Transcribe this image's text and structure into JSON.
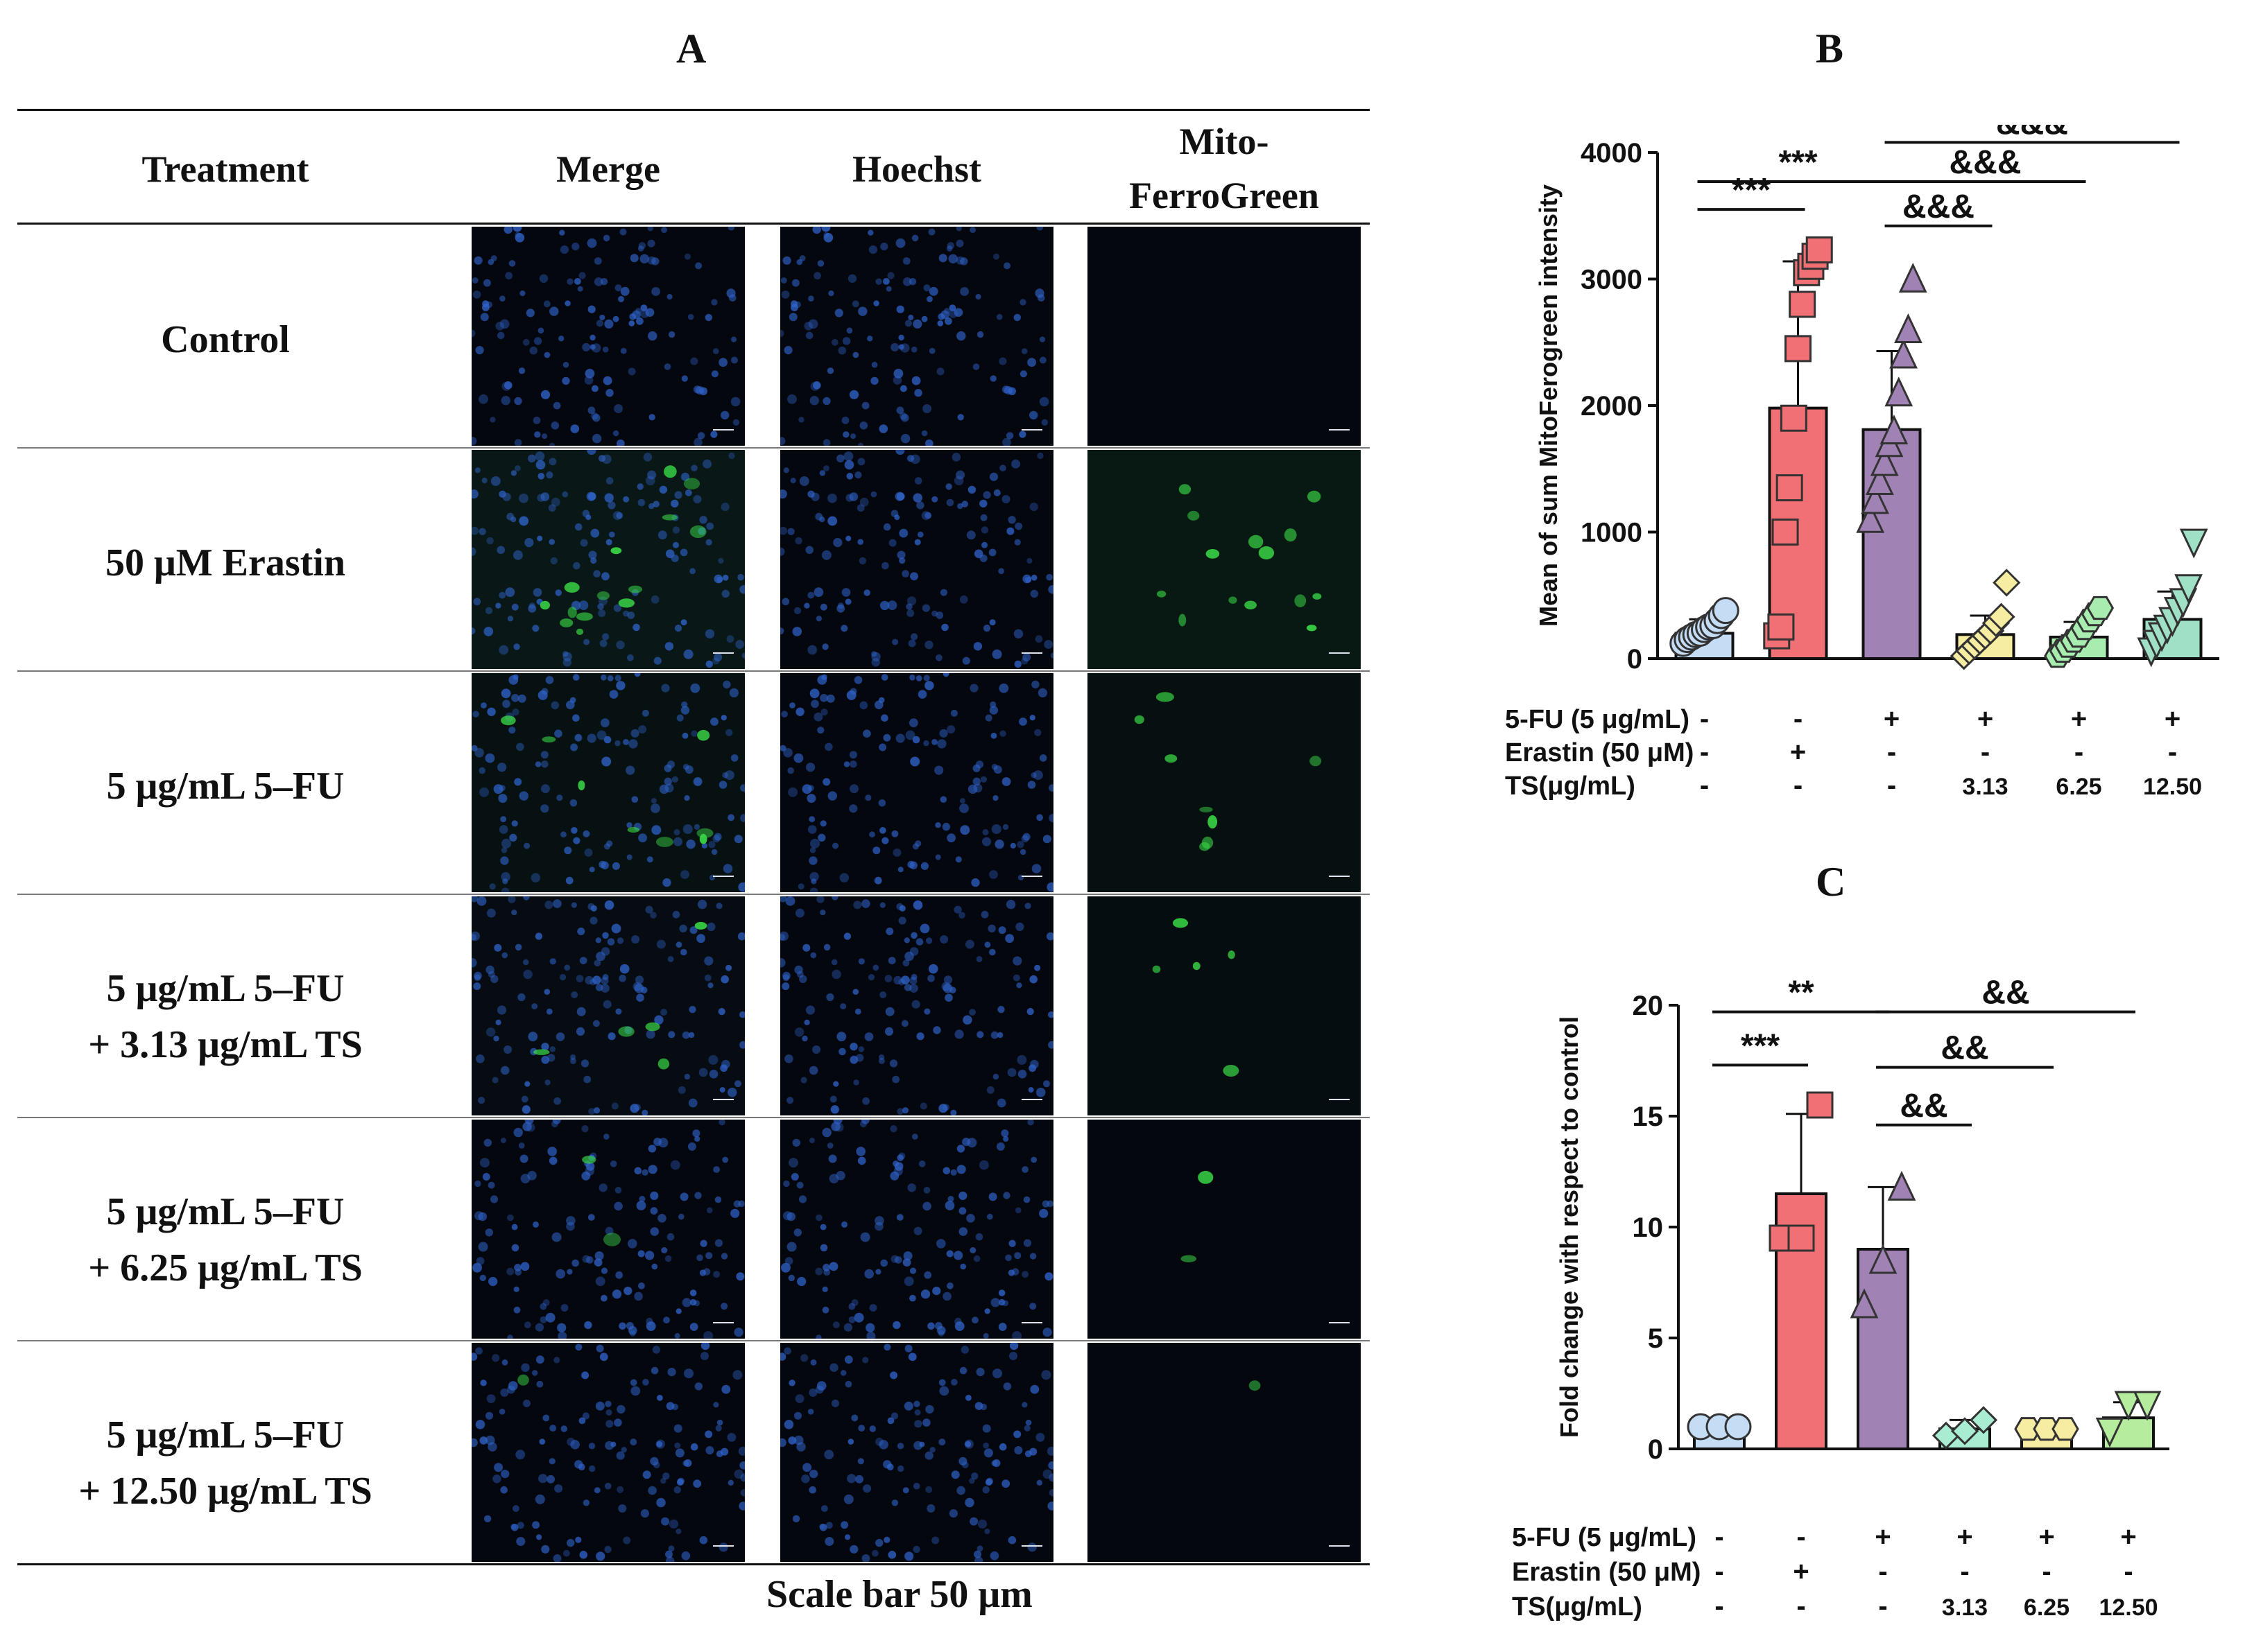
{
  "panel_a": {
    "letter": "A",
    "headers": [
      "Treatment",
      "Merge",
      "Hoechst",
      "Mito-",
      "FerroGreen"
    ],
    "rows": [
      {
        "line1": "Control",
        "line2": "",
        "green_level": 0.0
      },
      {
        "line1": "50 μM Erastin",
        "line2": "",
        "green_level": 1.0
      },
      {
        "line1": "5 μg/mL 5–FU",
        "line2": "",
        "green_level": 0.55
      },
      {
        "line1": "5 μg/mL 5–FU",
        "line2": "+ 3.13 μg/mL TS",
        "green_level": 0.35
      },
      {
        "line1": "5 μg/mL 5–FU",
        "line2": "+ 6.25 μg/mL TS",
        "green_level": 0.15
      },
      {
        "line1": "5 μg/mL 5–FU",
        "line2": "+ 12.50 μg/mL TS",
        "green_level": 0.08
      }
    ],
    "scale_caption": "Scale bar 50 μm",
    "scale_bar_label": "50 μm",
    "colors": {
      "nucleus": "#2f63c9",
      "ferro": "#39d646"
    }
  },
  "conditions": {
    "row_labels": [
      "5-FU (5 μg/mL)",
      "Erastin (50 μM)",
      "TS(μg/mL)"
    ],
    "fu": [
      "-",
      "-",
      "+",
      "+",
      "+",
      "+"
    ],
    "erastin": [
      "-",
      "+",
      "-",
      "-",
      "-",
      "-"
    ],
    "ts": [
      "-",
      "-",
      "-",
      "3.13",
      "6.25",
      "12.50"
    ]
  },
  "chart_data": [
    {
      "panel": "B",
      "type": "bar",
      "title": "",
      "xlabel": "",
      "ylabel": "Mean of sum MitoFerogreen intensity",
      "ylim": [
        0,
        4000
      ],
      "yticks": [
        0,
        1000,
        2000,
        3000,
        4000
      ],
      "categories": [
        "Control",
        "Erastin",
        "5-FU",
        "5-FU + TS 3.13",
        "5-FU + TS 6.25",
        "5-FU + TS 12.50"
      ],
      "values": [
        200,
        1980,
        1810,
        190,
        170,
        310
      ],
      "error": [
        110,
        1160,
        620,
        150,
        120,
        220
      ],
      "colors": [
        "#c5dcf5",
        "#f07075",
        "#a182b4",
        "#f6eca2",
        "#a8ecb0",
        "#9fe0c6"
      ],
      "markers": [
        "circle",
        "square",
        "triangle",
        "diamond",
        "hexagon",
        "invtriangle"
      ],
      "points": [
        [
          120,
          150,
          170,
          190,
          200,
          230,
          250,
          260,
          300,
          340,
          380
        ],
        [
          180,
          250,
          1000,
          1350,
          1900,
          2450,
          2800,
          3050,
          3100,
          3180,
          3230
        ],
        [
          1100,
          1250,
          1400,
          1550,
          1700,
          1800,
          2100,
          2400,
          2600,
          3000
        ],
        [
          20,
          60,
          100,
          140,
          180,
          220,
          280,
          330,
          600
        ],
        [
          20,
          60,
          100,
          140,
          180,
          240,
          300,
          350,
          400
        ],
        [
          60,
          120,
          180,
          240,
          300,
          380,
          450,
          560,
          920
        ]
      ],
      "significance": [
        {
          "label": "***",
          "from": 0,
          "to": 1,
          "level": 3550
        },
        {
          "label": "***",
          "from": 0,
          "to": 2,
          "level": 3770
        },
        {
          "label": "&&&",
          "from": 2,
          "to": 3,
          "level": 3420
        },
        {
          "label": "&&&",
          "from": 2,
          "to": 4,
          "level": 3770
        },
        {
          "label": "&&&",
          "from": 2,
          "to": 5,
          "level": 4080
        }
      ]
    },
    {
      "panel": "C",
      "type": "bar",
      "title": "",
      "xlabel": "",
      "ylabel": "Fold change with respect to control",
      "ylim": [
        0,
        20
      ],
      "yticks": [
        0,
        5,
        10,
        15,
        20
      ],
      "categories": [
        "Control",
        "Erastin",
        "5-FU",
        "5-FU + TS 3.13",
        "5-FU + TS 6.25",
        "5-FU + TS 12.50"
      ],
      "values": [
        1.0,
        11.5,
        9.0,
        0.9,
        0.9,
        1.4
      ],
      "error": [
        0.1,
        3.6,
        2.8,
        0.4,
        0.1,
        0.7
      ],
      "colors": [
        "#c5dcf5",
        "#f07075",
        "#a182b4",
        "#a8ecd2",
        "#f6eca2",
        "#b6ec9d"
      ],
      "markers": [
        "circle",
        "square",
        "triangle",
        "diamond",
        "hexagon",
        "invtriangle"
      ],
      "points": [
        [
          1.0,
          1.0,
          1.0
        ],
        [
          9.5,
          9.5,
          15.5
        ],
        [
          6.5,
          8.5,
          11.8
        ],
        [
          0.6,
          0.8,
          1.3
        ],
        [
          0.9,
          0.9,
          0.9
        ],
        [
          0.8,
          2.0,
          2.0
        ]
      ],
      "significance": [
        {
          "label": "***",
          "from": 0,
          "to": 1,
          "level": 17.3
        },
        {
          "label": "**",
          "from": 0,
          "to": 2,
          "level": 19.7
        },
        {
          "label": "&&",
          "from": 2,
          "to": 3,
          "level": 14.6
        },
        {
          "label": "&&",
          "from": 2,
          "to": 4,
          "level": 17.2
        },
        {
          "label": "&&",
          "from": 2,
          "to": 5,
          "level": 19.7
        }
      ]
    }
  ]
}
